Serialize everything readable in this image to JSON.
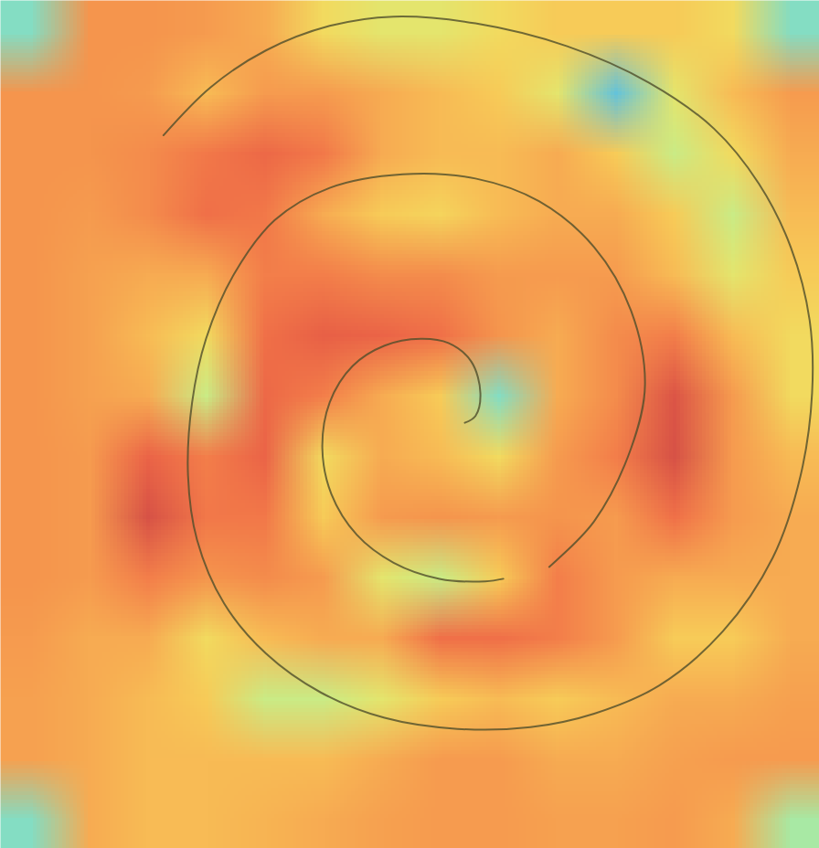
{
  "chart_data": {
    "type": "heatmap",
    "tick_labels": false,
    "xlim": [
      0,
      100
    ],
    "ylim": [
      100,
      0
    ],
    "zlim": [
      0,
      1
    ],
    "cells": [
      [
        0.2,
        0.62,
        0.62,
        0.6,
        0.55,
        0.4,
        0.35,
        0.35,
        0.4,
        0.45,
        0.45,
        0.45,
        0.4,
        0.2
      ],
      [
        0.62,
        0.62,
        0.6,
        0.5,
        0.6,
        0.6,
        0.55,
        0.5,
        0.45,
        0.35,
        0.15,
        0.35,
        0.5,
        0.6
      ],
      [
        0.62,
        0.62,
        0.65,
        0.72,
        0.78,
        0.72,
        0.55,
        0.5,
        0.5,
        0.55,
        0.45,
        0.3,
        0.4,
        0.55
      ],
      [
        0.62,
        0.6,
        0.65,
        0.75,
        0.72,
        0.55,
        0.45,
        0.42,
        0.5,
        0.55,
        0.55,
        0.45,
        0.3,
        0.5
      ],
      [
        0.62,
        0.58,
        0.55,
        0.55,
        0.7,
        0.7,
        0.65,
        0.65,
        0.6,
        0.6,
        0.6,
        0.5,
        0.35,
        0.45
      ],
      [
        0.62,
        0.58,
        0.5,
        0.4,
        0.75,
        0.82,
        0.8,
        0.75,
        0.62,
        0.55,
        0.65,
        0.7,
        0.5,
        0.4
      ],
      [
        0.62,
        0.58,
        0.55,
        0.3,
        0.78,
        0.7,
        0.55,
        0.45,
        0.2,
        0.55,
        0.65,
        0.88,
        0.6,
        0.4
      ],
      [
        0.62,
        0.6,
        0.8,
        0.7,
        0.8,
        0.4,
        0.55,
        0.5,
        0.4,
        0.6,
        0.7,
        0.9,
        0.6,
        0.5
      ],
      [
        0.62,
        0.6,
        0.9,
        0.72,
        0.72,
        0.45,
        0.6,
        0.62,
        0.6,
        0.62,
        0.6,
        0.75,
        0.6,
        0.55
      ],
      [
        0.62,
        0.6,
        0.7,
        0.62,
        0.65,
        0.6,
        0.35,
        0.3,
        0.45,
        0.7,
        0.6,
        0.55,
        0.55,
        0.55
      ],
      [
        0.6,
        0.55,
        0.55,
        0.4,
        0.5,
        0.55,
        0.55,
        0.75,
        0.75,
        0.7,
        0.6,
        0.45,
        0.45,
        0.55
      ],
      [
        0.58,
        0.55,
        0.5,
        0.45,
        0.3,
        0.3,
        0.35,
        0.45,
        0.5,
        0.45,
        0.5,
        0.55,
        0.55,
        0.58
      ],
      [
        0.58,
        0.55,
        0.5,
        0.5,
        0.5,
        0.5,
        0.55,
        0.6,
        0.6,
        0.55,
        0.55,
        0.58,
        0.6,
        0.6
      ],
      [
        0.2,
        0.55,
        0.5,
        0.5,
        0.52,
        0.55,
        0.58,
        0.6,
        0.6,
        0.58,
        0.58,
        0.6,
        0.55,
        0.25
      ]
    ],
    "line": {
      "color": "#4f4e2a",
      "x": [
        56.7,
        58.0,
        58.6,
        57.5,
        54.7,
        51.3,
        46.9,
        43.0,
        40.2,
        39.3,
        40.4,
        43.5,
        48.0,
        53.6,
        59.2,
        61.4,
        null,
        67.0,
        72.5,
        77.0,
        78.7,
        77.0,
        72.5,
        65.8,
        58.0,
        49.1,
        40.2,
        33.5,
        28.5,
        25.1,
        23.4,
        22.9,
        24.0,
        27.3,
        32.4,
        39.1,
        46.9,
        55.8,
        64.7,
        72.5,
        80.4,
        88.2,
        94.3,
        97.7,
        99.1,
        98.8,
        96.5,
        92.6,
        87.1,
        79.2,
        69.2,
        58.0,
        48.0,
        40.2,
        32.4,
        25.7,
        19.9
      ],
      "y": [
        49.8,
        49.0,
        46.3,
        42.6,
        40.4,
        39.9,
        40.7,
        43.1,
        47.4,
        52.8,
        58.2,
        63.0,
        66.3,
        68.2,
        68.5,
        68.2,
        null,
        66.8,
        61.4,
        52.8,
        45.3,
        36.6,
        29.1,
        23.7,
        21.0,
        20.5,
        22.1,
        25.9,
        32.3,
        39.9,
        47.4,
        56.0,
        63.6,
        71.1,
        77.0,
        81.6,
        84.6,
        85.9,
        85.7,
        84.1,
        80.8,
        74.4,
        65.7,
        56.0,
        46.3,
        37.7,
        29.1,
        21.6,
        15.1,
        9.7,
        5.4,
        2.7,
        1.9,
        3.0,
        5.9,
        10.2,
        15.9
      ]
    }
  }
}
